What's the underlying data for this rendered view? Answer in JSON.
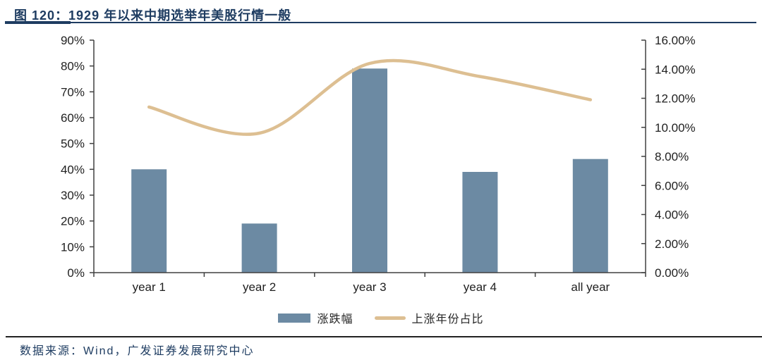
{
  "figure": {
    "title": "图 120：1929 年以来中期选举年美股行情一般",
    "source": "数据来源：Wind，广发证券发展研究中心"
  },
  "colors": {
    "accent_navy": "#1e3c61",
    "bar": "#6c8aa3",
    "line": "#ddbf92",
    "axis": "#404040",
    "tick_label": "#1f1f1f"
  },
  "chart_data": {
    "type": "bar",
    "subtype": "bar-line-combo",
    "categories": [
      "year 1",
      "year 2",
      "year 3",
      "year 4",
      "all year"
    ],
    "series": [
      {
        "name": "涨跌幅",
        "type": "bar",
        "axis": "left",
        "unit": "%",
        "color": "#6c8aa3",
        "values": [
          40,
          19,
          79,
          39,
          44
        ]
      },
      {
        "name": "上涨年份占比",
        "type": "line",
        "axis": "right",
        "unit": "%",
        "color": "#ddbf92",
        "values": [
          11.4,
          9.6,
          14.4,
          13.5,
          11.9
        ]
      }
    ],
    "left_axis": {
      "min": 0,
      "max": 90,
      "step": 10,
      "labels": [
        "0%",
        "10%",
        "20%",
        "30%",
        "40%",
        "50%",
        "60%",
        "70%",
        "80%",
        "90%"
      ]
    },
    "right_axis": {
      "min": 0,
      "max": 16,
      "step": 2,
      "labels": [
        "0.00%",
        "2.00%",
        "4.00%",
        "6.00%",
        "8.00%",
        "10.00%",
        "12.00%",
        "14.00%",
        "16.00%"
      ]
    },
    "grid": false,
    "legend_position": "bottom"
  }
}
